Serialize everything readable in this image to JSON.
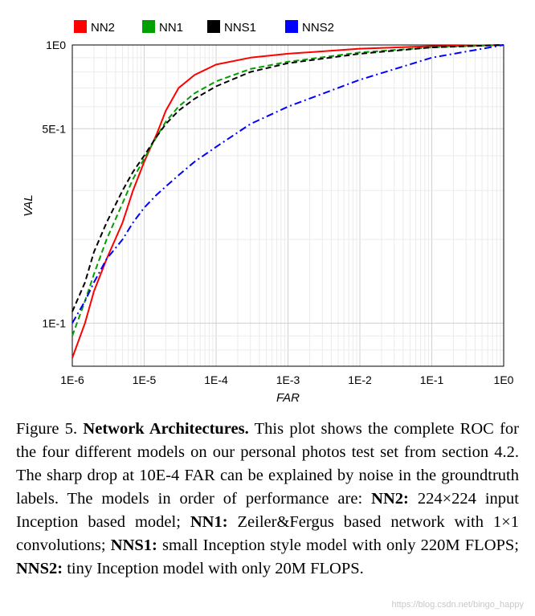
{
  "chart_data": {
    "type": "line",
    "title": "",
    "xlabel": "FAR",
    "ylabel": "VAL",
    "xscale": "log",
    "yscale": "log",
    "xlim": [
      1e-06,
      1
    ],
    "ylim": [
      0.07,
      1
    ],
    "xticks": [
      {
        "value": 1e-06,
        "label": "1E-6"
      },
      {
        "value": 1e-05,
        "label": "1E-5"
      },
      {
        "value": 0.0001,
        "label": "1E-4"
      },
      {
        "value": 0.001,
        "label": "1E-3"
      },
      {
        "value": 0.01,
        "label": "1E-2"
      },
      {
        "value": 0.1,
        "label": "1E-1"
      },
      {
        "value": 1,
        "label": "1E0"
      }
    ],
    "yticks": [
      {
        "value": 0.1,
        "label": "1E-1"
      },
      {
        "value": 0.5,
        "label": "5E-1"
      },
      {
        "value": 1,
        "label": "1E0"
      }
    ],
    "grid": true,
    "legend_position": "top",
    "series": [
      {
        "name": "NN2",
        "color": "#ff0000",
        "dash": "solid",
        "x": [
          1e-06,
          1.5e-06,
          2e-06,
          3e-06,
          5e-06,
          7e-06,
          1e-05,
          1.5e-05,
          2e-05,
          3e-05,
          5e-05,
          0.0001,
          0.0003,
          0.001,
          0.01,
          0.1,
          1
        ],
        "y": [
          0.075,
          0.1,
          0.13,
          0.17,
          0.23,
          0.3,
          0.38,
          0.48,
          0.58,
          0.7,
          0.78,
          0.85,
          0.9,
          0.93,
          0.97,
          0.99,
          1.0
        ]
      },
      {
        "name": "NN1",
        "color": "#00a000",
        "dash": "dashed",
        "x": [
          1e-06,
          1.5e-06,
          2e-06,
          3e-06,
          5e-06,
          7e-06,
          1e-05,
          1.5e-05,
          2e-05,
          3e-05,
          5e-05,
          0.0001,
          0.0003,
          0.001,
          0.01,
          0.1,
          1
        ],
        "y": [
          0.09,
          0.12,
          0.15,
          0.2,
          0.27,
          0.33,
          0.39,
          0.47,
          0.53,
          0.6,
          0.67,
          0.74,
          0.82,
          0.87,
          0.94,
          0.98,
          1.0
        ]
      },
      {
        "name": "NNS1",
        "color": "#000000",
        "dash": "dashed",
        "x": [
          1e-06,
          1.5e-06,
          2e-06,
          3e-06,
          5e-06,
          7e-06,
          1e-05,
          1.5e-05,
          2e-05,
          3e-05,
          5e-05,
          0.0001,
          0.0003,
          0.001,
          0.01,
          0.1,
          1
        ],
        "y": [
          0.11,
          0.14,
          0.18,
          0.23,
          0.3,
          0.35,
          0.4,
          0.47,
          0.52,
          0.58,
          0.64,
          0.71,
          0.8,
          0.86,
          0.93,
          0.98,
          1.0
        ]
      },
      {
        "name": "NNS2",
        "color": "#0000ff",
        "dash": "dashdot",
        "x": [
          1e-06,
          1.5e-06,
          2e-06,
          3e-06,
          5e-06,
          7e-06,
          1e-05,
          1.5e-05,
          2e-05,
          3e-05,
          5e-05,
          0.0001,
          0.0003,
          0.001,
          0.01,
          0.1,
          1
        ],
        "y": [
          0.1,
          0.12,
          0.14,
          0.17,
          0.2,
          0.23,
          0.26,
          0.29,
          0.31,
          0.34,
          0.38,
          0.43,
          0.52,
          0.6,
          0.75,
          0.9,
          1.0
        ]
      }
    ]
  },
  "caption": {
    "figure_label": "Figure 5.",
    "heading": "Network Architectures.",
    "body_1": " This plot shows the complete ROC for the four different models on our personal photos test set from section 4.2. The sharp drop at 10E-4 FAR can be explained by noise in the groundtruth labels. The models in order of performance are: ",
    "m1_name": "NN2:",
    "m1_text": " 224×224 input Inception based model; ",
    "m2_name": "NN1:",
    "m2_text": " Zeiler&Fergus based network with 1×1 convolutions; ",
    "m3_name": "NNS1:",
    "m3_text": " small Inception style model with only 220M FLOPS; ",
    "m4_name": "NNS2:",
    "m4_text": " tiny Inception model with only 20M FLOPS."
  },
  "watermark": "https://blog.csdn.net/bingo_happy"
}
